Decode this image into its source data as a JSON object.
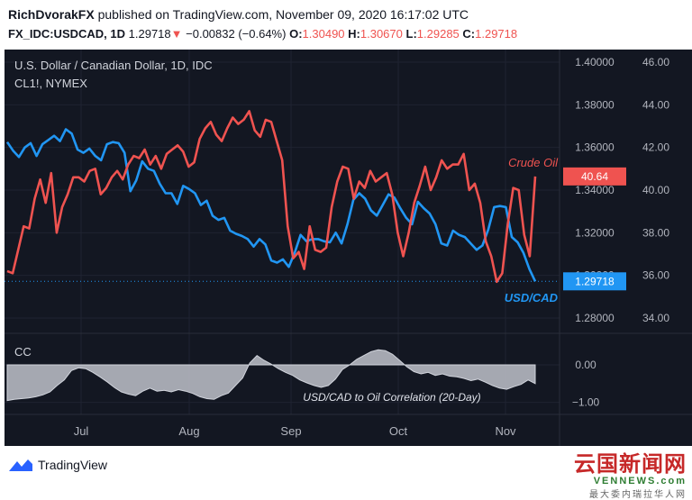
{
  "header": {
    "author": "RichDvorakFX",
    "published_text": "published on TradingView.com, November 09, 2020 16:17:02 UTC",
    "symbol": "FX_IDC:USDCAD, 1D",
    "last": "1.29718",
    "change": "−0.00832 (−0.64%)",
    "o_label": "O:",
    "o": "1.30490",
    "h_label": "H:",
    "h": "1.30670",
    "l_label": "L:",
    "l": "1.29285",
    "c_label": "C:",
    "c": "1.29718",
    "down_arrow": "▼"
  },
  "colors": {
    "background": "#131722",
    "usdcad": "#2196f3",
    "crude": "#ef5350",
    "correlation_fill": "#b2b5be",
    "text": "#b2b5be"
  },
  "legend": {
    "main_title": "U.S. Dollar / Canadian Dollar, 1D, IDC",
    "overlay_title": "CL1!, NYMEX",
    "crude_label": "Crude Oil",
    "usdcad_label": "USD/CAD",
    "indicator_title": "CC",
    "indicator_annotation": "USD/CAD to Oil Correlation (20-Day)"
  },
  "chart_data": [
    {
      "type": "line",
      "title": "U.S. Dollar / Canadian Dollar, 1D, IDC",
      "x_ticks": [
        "Jul",
        "Aug",
        "Sep",
        "Oct",
        "Nov"
      ],
      "y_left_ticks": [
        "1.40000",
        "1.38000",
        "1.36000",
        "1.34000",
        "1.32000",
        "1.30000",
        "1.28000"
      ],
      "y_left_lim": [
        1.28,
        1.4
      ],
      "y_right_ticks": [
        "46.00",
        "44.00",
        "42.00",
        "40.00",
        "38.00",
        "36.00",
        "34.00"
      ],
      "y_right_lim": [
        34,
        46
      ],
      "price_labels": {
        "crude_last": "40.64",
        "usdcad_last": "1.29718"
      },
      "series": [
        {
          "name": "USD/CAD",
          "axis": "left",
          "values": [
            1.3625,
            1.3585,
            1.3555,
            1.36,
            1.362,
            1.356,
            1.3615,
            1.3635,
            1.3655,
            1.363,
            1.3685,
            1.3665,
            1.359,
            1.3575,
            1.3595,
            1.356,
            1.354,
            1.3615,
            1.3625,
            1.362,
            1.3575,
            1.3395,
            1.3445,
            1.3535,
            1.35,
            1.349,
            1.343,
            1.3385,
            1.3385,
            1.3335,
            1.342,
            1.3405,
            1.3385,
            1.333,
            1.335,
            1.328,
            1.326,
            1.327,
            1.321,
            1.3195,
            1.3185,
            1.317,
            1.3135,
            1.317,
            1.3145,
            1.307,
            1.306,
            1.3075,
            1.304,
            1.3105,
            1.319,
            1.316,
            1.317,
            1.317,
            1.316,
            1.3155,
            1.32,
            1.315,
            1.324,
            1.3355,
            1.3385,
            1.336,
            1.3305,
            1.328,
            1.333,
            1.338,
            1.3365,
            1.3315,
            1.327,
            1.324,
            1.3345,
            1.3315,
            1.329,
            1.324,
            1.315,
            1.314,
            1.321,
            1.319,
            1.318,
            1.315,
            1.312,
            1.314,
            1.3215,
            1.332,
            1.3325,
            1.332,
            1.318,
            1.3155,
            1.3105,
            1.303,
            1.2972
          ]
        },
        {
          "name": "Crude Oil",
          "axis": "right",
          "values": [
            36.2,
            36.1,
            37.2,
            38.3,
            38.2,
            39.6,
            40.5,
            39.4,
            40.8,
            38.0,
            39.2,
            39.8,
            40.6,
            40.6,
            40.4,
            40.9,
            41.0,
            39.8,
            40.1,
            40.6,
            40.9,
            40.5,
            41.2,
            41.6,
            41.5,
            41.9,
            41.2,
            41.6,
            41.0,
            41.7,
            41.9,
            42.1,
            41.8,
            41.1,
            41.3,
            42.4,
            42.9,
            43.2,
            42.6,
            42.3,
            42.9,
            43.4,
            43.1,
            43.3,
            43.7,
            42.8,
            42.5,
            43.3,
            43.2,
            42.3,
            41.4,
            38.3,
            36.8,
            37.1,
            36.3,
            38.3,
            37.2,
            37.1,
            37.3,
            39.2,
            40.4,
            41.1,
            41.0,
            39.6,
            40.4,
            40.1,
            40.9,
            40.4,
            40.6,
            40.8,
            39.8,
            38.0,
            36.9,
            38.0,
            39.4,
            40.2,
            41.1,
            40.0,
            40.6,
            41.4,
            41.0,
            41.2,
            41.2,
            41.7,
            40.0,
            40.3,
            39.4,
            37.6,
            36.9,
            35.7,
            36.1,
            38.4,
            40.1,
            40.0,
            37.9,
            36.9,
            40.64
          ]
        }
      ]
    },
    {
      "type": "area",
      "title": "CC",
      "annotation": "USD/CAD to Oil Correlation (20-Day)",
      "y_ticks": [
        "0.00",
        "−1.00"
      ],
      "ylim": [
        -1.2,
        0.6
      ],
      "series": [
        {
          "name": "CC",
          "values": [
            -0.95,
            -0.92,
            -0.9,
            -0.88,
            -0.85,
            -0.8,
            -0.72,
            -0.55,
            -0.4,
            -0.15,
            -0.08,
            -0.1,
            -0.2,
            -0.32,
            -0.45,
            -0.6,
            -0.72,
            -0.78,
            -0.82,
            -0.7,
            -0.62,
            -0.7,
            -0.68,
            -0.72,
            -0.66,
            -0.7,
            -0.76,
            -0.85,
            -0.9,
            -0.92,
            -0.82,
            -0.75,
            -0.55,
            -0.35,
            0.05,
            0.25,
            0.12,
            0.02,
            -0.1,
            -0.2,
            -0.28,
            -0.4,
            -0.48,
            -0.55,
            -0.6,
            -0.55,
            -0.38,
            -0.12,
            0.0,
            0.15,
            0.25,
            0.35,
            0.4,
            0.38,
            0.28,
            0.12,
            -0.05,
            -0.18,
            -0.24,
            -0.2,
            -0.28,
            -0.24,
            -0.3,
            -0.32,
            -0.36,
            -0.42,
            -0.38,
            -0.46,
            -0.55,
            -0.62,
            -0.65,
            -0.58,
            -0.52,
            -0.4,
            -0.5
          ]
        }
      ]
    }
  ],
  "footer": {
    "brand": "TradingView",
    "watermark_top": "云国新闻网",
    "watermark_mid": "VENNEWS.com",
    "watermark_bottom": "最大委内瑞拉华人网"
  }
}
